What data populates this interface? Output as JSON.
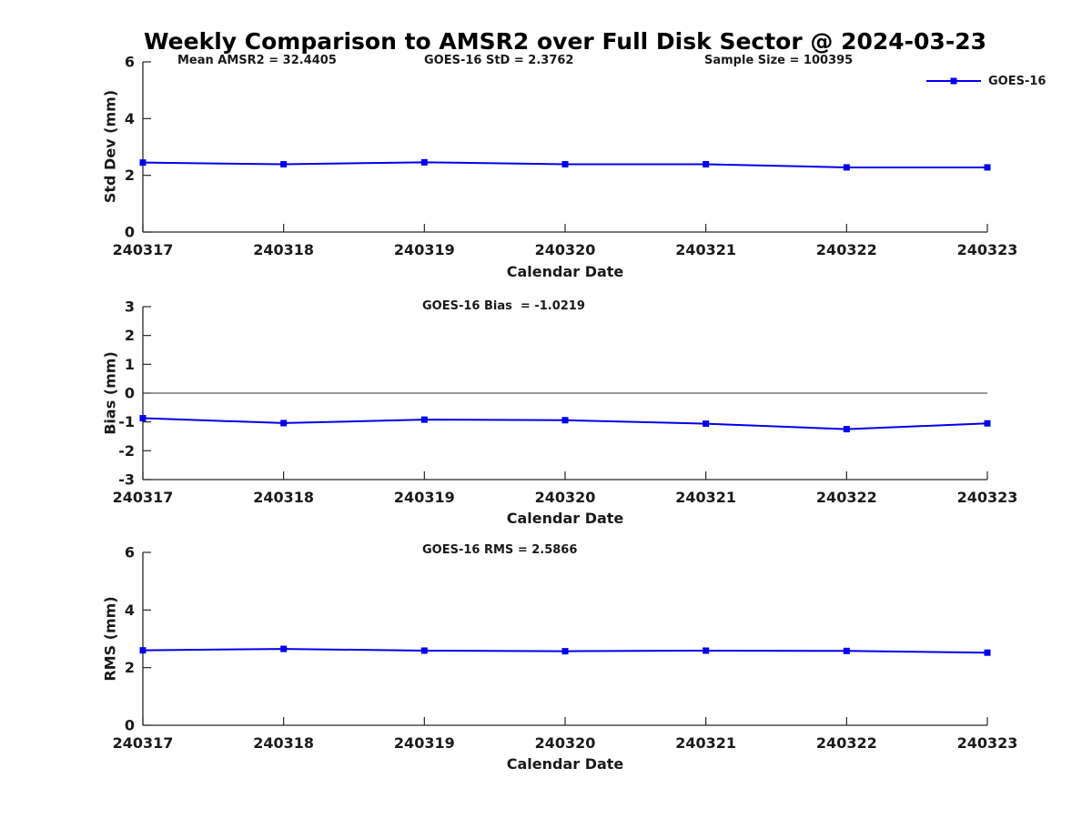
{
  "title": "Weekly Comparison to AMSR2 over Full Disk Sector @ 2024-03-23",
  "legend": {
    "label": "GOES-16",
    "color": "#0000EE",
    "position": "top-right"
  },
  "xlabel": "Calendar Date",
  "categories": [
    "240317",
    "240318",
    "240319",
    "240320",
    "240321",
    "240322",
    "240323"
  ],
  "chart_data": [
    {
      "type": "line",
      "name": "std-dev",
      "ylabel": "Std Dev (mm)",
      "xlabel": "Calendar Date",
      "ylim": [
        0,
        6
      ],
      "yticks": [
        0,
        2,
        4,
        6
      ],
      "grid": false,
      "zero_line": false,
      "series": [
        {
          "name": "GOES-16",
          "marker": "square",
          "values": [
            2.45,
            2.39,
            2.46,
            2.39,
            2.39,
            2.28,
            2.28
          ]
        }
      ],
      "annotations": [
        "Mean AMSR2 = 32.4405",
        "GOES-16 StD = 2.3762",
        "Sample Size = 100395"
      ]
    },
    {
      "type": "line",
      "name": "bias",
      "ylabel": "Bias (mm)",
      "xlabel": "Calendar Date",
      "ylim": [
        -3,
        3
      ],
      "yticks": [
        -3,
        -2,
        -1,
        0,
        1,
        2,
        3
      ],
      "grid": false,
      "zero_line": true,
      "series": [
        {
          "name": "GOES-16",
          "marker": "square",
          "values": [
            -0.87,
            -1.04,
            -0.92,
            -0.94,
            -1.06,
            -1.25,
            -1.05
          ]
        }
      ],
      "annotations": [
        "GOES-16 Bias  = -1.0219"
      ]
    },
    {
      "type": "line",
      "name": "rms",
      "ylabel": "RMS (mm)",
      "xlabel": "Calendar Date",
      "ylim": [
        0,
        6
      ],
      "yticks": [
        0,
        2,
        4,
        6
      ],
      "grid": false,
      "zero_line": false,
      "series": [
        {
          "name": "GOES-16",
          "marker": "square",
          "values": [
            2.6,
            2.65,
            2.59,
            2.57,
            2.59,
            2.58,
            2.52
          ]
        }
      ],
      "annotations": [
        "GOES-16 RMS = 2.5866"
      ]
    }
  ]
}
